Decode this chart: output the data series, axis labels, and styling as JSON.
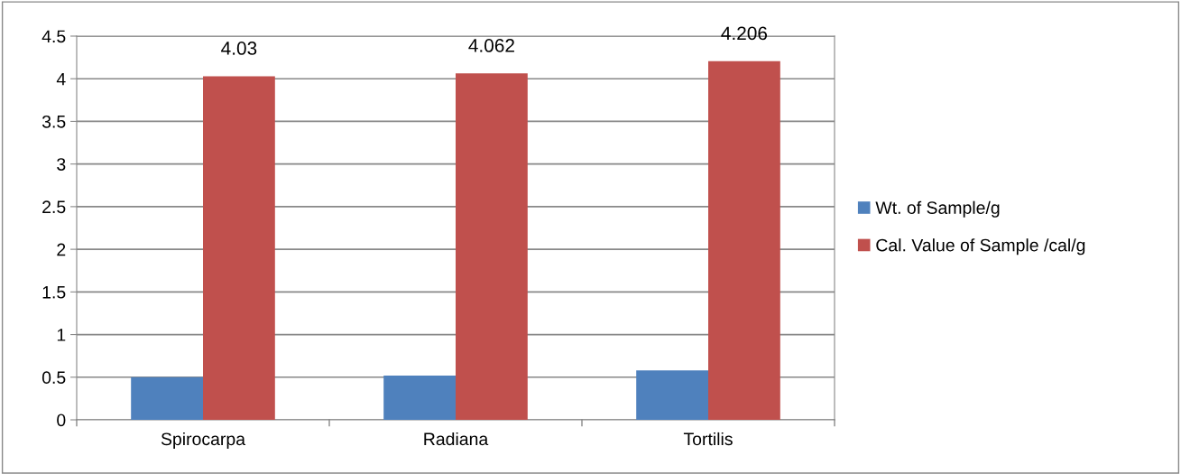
{
  "chart_data": {
    "type": "bar",
    "categories": [
      "Spirocarpa",
      "Radiana",
      "Tortilis"
    ],
    "series": [
      {
        "name": "Wt. of Sample/g",
        "color": "#4f81bd",
        "values": [
          0.5,
          0.52,
          0.58
        ]
      },
      {
        "name": "Cal. Value of Sample /cal/g",
        "color": "#c0504d",
        "values": [
          4.03,
          4.062,
          4.206
        ],
        "value_labels": [
          "4.03",
          "4.062",
          "4.206"
        ]
      }
    ],
    "ylim": [
      0,
      4.5
    ],
    "yticks": [
      0,
      0.5,
      1,
      1.5,
      2,
      2.5,
      3,
      3.5,
      4,
      4.5
    ],
    "grid": "y",
    "legend": "right"
  }
}
